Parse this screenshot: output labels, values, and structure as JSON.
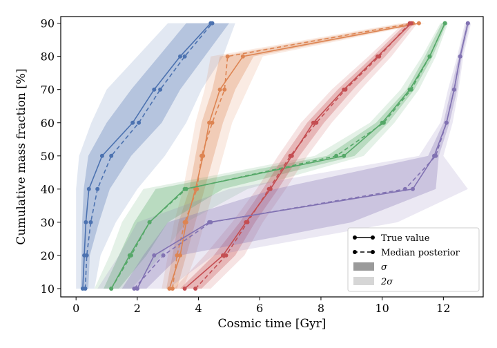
{
  "chart_data": {
    "type": "line",
    "xlabel": "Cosmic time [Gyr]",
    "ylabel": "Cumulative mass fraction [%]",
    "xlim": [
      -0.5,
      13.3
    ],
    "ylim": [
      7.5,
      92
    ],
    "xticks": [
      0,
      2,
      4,
      6,
      8,
      10,
      12
    ],
    "yticks": [
      10,
      20,
      30,
      40,
      50,
      60,
      70,
      80,
      90
    ],
    "grid": false,
    "legend": {
      "placement": "bottom-right",
      "entries": [
        {
          "label": "True value",
          "kind": "solid"
        },
        {
          "label": "Median posterior",
          "kind": "dashed"
        },
        {
          "label": "σ",
          "kind": "band1"
        },
        {
          "label": "2σ",
          "kind": "band2"
        }
      ]
    },
    "y": [
      10,
      20,
      30,
      40,
      50,
      60,
      70,
      80,
      90
    ],
    "series": [
      {
        "color": "#4c72b0",
        "true_x": [
          0.22,
          0.27,
          0.32,
          0.42,
          0.85,
          1.85,
          2.55,
          3.4,
          4.4
        ],
        "median_x": [
          0.3,
          0.35,
          0.48,
          0.7,
          1.15,
          2.05,
          2.75,
          3.55,
          4.45
        ],
        "sigma_lo": [
          0.15,
          0.18,
          0.2,
          0.25,
          0.4,
          1.0,
          1.8,
          2.7,
          3.6
        ],
        "sigma_hi": [
          0.4,
          0.45,
          0.75,
          1.1,
          1.8,
          2.8,
          3.4,
          4.2,
          5.0
        ],
        "two_sigma_lo": [
          0.0,
          0.0,
          0.0,
          0.0,
          0.1,
          0.5,
          1.0,
          2.0,
          3.0
        ],
        "two_sigma_hi": [
          0.6,
          0.8,
          1.3,
          2.0,
          2.9,
          3.6,
          4.1,
          4.8,
          5.2
        ]
      },
      {
        "color": "#dd8452",
        "true_x": [
          3.05,
          3.4,
          3.6,
          3.9,
          4.15,
          4.35,
          4.7,
          5.45,
          11.2
        ],
        "median_x": [
          3.15,
          3.3,
          3.55,
          3.95,
          4.1,
          4.45,
          4.85,
          4.95,
          11.0
        ],
        "sigma_lo": [
          2.95,
          3.15,
          3.35,
          3.7,
          3.9,
          4.1,
          4.45,
          4.7,
          10.8
        ],
        "sigma_hi": [
          3.3,
          3.6,
          3.9,
          4.2,
          4.5,
          4.8,
          5.2,
          5.8,
          11.3
        ],
        "two_sigma_lo": [
          2.8,
          3.0,
          3.2,
          3.5,
          3.7,
          3.9,
          4.2,
          4.4,
          10.6
        ],
        "two_sigma_hi": [
          3.5,
          3.9,
          4.2,
          4.5,
          4.8,
          5.1,
          5.6,
          6.1,
          11.4
        ]
      },
      {
        "color": "#55a868",
        "true_x": [
          1.15,
          1.75,
          2.4,
          3.55,
          8.75,
          10.0,
          10.9,
          11.55,
          12.05
        ],
        "median_x": [
          1.15,
          1.8,
          2.4,
          3.6,
          8.5,
          10.05,
          10.95,
          11.55,
          12.05
        ],
        "sigma_lo": [
          0.9,
          1.4,
          1.9,
          2.6,
          8.2,
          9.8,
          10.8,
          11.4,
          11.95
        ],
        "sigma_hi": [
          1.4,
          2.3,
          3.0,
          4.8,
          9.1,
          10.2,
          11.05,
          11.65,
          12.1
        ],
        "two_sigma_lo": [
          0.6,
          1.1,
          1.5,
          2.2,
          7.8,
          9.6,
          10.6,
          11.3,
          11.9
        ],
        "two_sigma_hi": [
          1.8,
          2.8,
          3.6,
          5.6,
          9.4,
          10.4,
          11.2,
          11.75,
          12.15
        ]
      },
      {
        "color": "#c44e52",
        "true_x": [
          3.55,
          4.8,
          5.55,
          6.35,
          7.05,
          7.75,
          8.75,
          9.85,
          10.95
        ],
        "median_x": [
          3.9,
          4.9,
          5.6,
          6.3,
          7.0,
          7.85,
          8.8,
          9.9,
          10.9
        ],
        "sigma_lo": [
          3.4,
          4.5,
          5.35,
          6.1,
          6.8,
          7.55,
          8.55,
          9.7,
          10.8
        ],
        "sigma_hi": [
          4.1,
          5.2,
          5.85,
          6.6,
          7.3,
          8.1,
          9.05,
          10.1,
          11.05
        ],
        "two_sigma_lo": [
          3.2,
          4.2,
          5.1,
          5.9,
          6.6,
          7.35,
          8.35,
          9.55,
          10.7
        ],
        "two_sigma_hi": [
          4.4,
          5.5,
          6.1,
          6.85,
          7.55,
          8.35,
          9.3,
          10.3,
          11.15
        ]
      },
      {
        "color": "#8172b2",
        "true_x": [
          2.0,
          2.55,
          4.35,
          11.0,
          11.7,
          12.1,
          12.35,
          12.55,
          12.8
        ],
        "median_x": [
          1.9,
          2.85,
          4.4,
          10.75,
          11.75,
          12.1,
          12.35,
          12.55,
          12.8
        ],
        "sigma_lo": [
          1.5,
          2.2,
          3.0,
          6.5,
          11.5,
          12.0,
          12.25,
          12.5,
          12.75
        ],
        "sigma_hi": [
          2.3,
          3.4,
          9.0,
          11.75,
          11.85,
          12.2,
          12.45,
          12.6,
          12.85
        ],
        "two_sigma_lo": [
          0.7,
          1.4,
          2.0,
          5.0,
          11.2,
          11.9,
          12.15,
          12.45,
          12.7
        ],
        "two_sigma_hi": [
          3.0,
          4.5,
          10.5,
          12.8,
          12.0,
          12.3,
          12.5,
          12.65,
          12.9
        ]
      }
    ]
  }
}
